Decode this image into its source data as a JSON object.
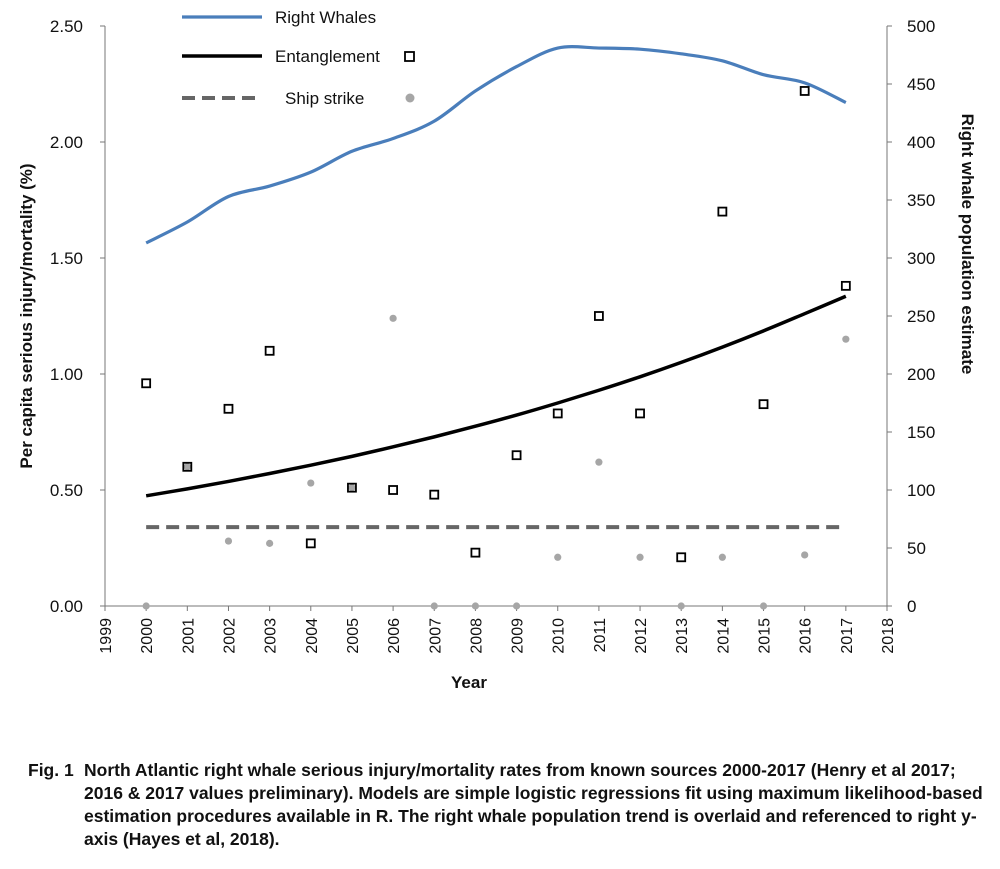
{
  "chart_data": {
    "type": "line",
    "xlabel": "Year",
    "ylabel_left": "Per capita serious injury/mortality (%)",
    "ylabel_right": "Right whale population estimate",
    "x_ticks": [
      "1999",
      "2000",
      "2001",
      "2002",
      "2003",
      "2004",
      "2005",
      "2006",
      "2007",
      "2008",
      "2009",
      "2010",
      "2011",
      "2012",
      "2013",
      "2014",
      "2015",
      "2016",
      "2017",
      "2018"
    ],
    "xlim": [
      1999,
      2018
    ],
    "ylim_left": [
      0,
      2.5
    ],
    "ylim_right": [
      0,
      500
    ],
    "y_ticks_left": [
      "0.00",
      "0.50",
      "1.00",
      "1.50",
      "2.00",
      "2.50"
    ],
    "y_ticks_right": [
      "0",
      "50",
      "100",
      "150",
      "200",
      "250",
      "300",
      "350",
      "400",
      "450",
      "500"
    ],
    "legend_placement": "top-left",
    "series": [
      {
        "name": "Right Whales",
        "style": "line",
        "axis": "right",
        "color": "#4a7ebb",
        "x": [
          2000,
          2001,
          2002,
          2003,
          2004,
          2005,
          2006,
          2007,
          2008,
          2009,
          2010,
          2011,
          2012,
          2013,
          2014,
          2015,
          2016,
          2017
        ],
        "values": [
          313,
          331,
          353,
          362,
          374,
          392,
          403,
          418,
          444,
          465,
          481,
          481,
          480,
          476,
          470,
          458,
          451,
          434
        ]
      },
      {
        "name": "Entanglement",
        "style": "open-square",
        "axis": "left",
        "color": "#000000",
        "x": [
          2000,
          2001,
          2002,
          2003,
          2004,
          2005,
          2006,
          2007,
          2008,
          2009,
          2010,
          2011,
          2012,
          2013,
          2014,
          2015,
          2016,
          2017
        ],
        "values": [
          0.96,
          0.6,
          0.85,
          1.1,
          0.27,
          0.51,
          0.5,
          0.48,
          0.23,
          0.65,
          0.83,
          1.25,
          0.83,
          0.21,
          1.7,
          0.87,
          2.22,
          1.38
        ]
      },
      {
        "name": "Entanglement model",
        "style": "solid-line",
        "axis": "left",
        "color": "#000000",
        "x": [
          2000,
          2001,
          2002,
          2003,
          2004,
          2005,
          2006,
          2007,
          2008,
          2009,
          2010,
          2011,
          2012,
          2013,
          2014,
          2015,
          2016,
          2017
        ],
        "values": [
          0.475,
          0.505,
          0.537,
          0.571,
          0.607,
          0.645,
          0.686,
          0.729,
          0.775,
          0.823,
          0.875,
          0.93,
          0.988,
          1.05,
          1.116,
          1.186,
          1.26,
          1.335
        ]
      },
      {
        "name": "Ship strike",
        "style": "filled-dot",
        "axis": "left",
        "color": "#a6a6a6",
        "x": [
          2000,
          2001,
          2002,
          2003,
          2004,
          2005,
          2006,
          2007,
          2008,
          2009,
          2010,
          2011,
          2012,
          2013,
          2014,
          2015,
          2016,
          2017
        ],
        "values": [
          0.0,
          0.6,
          0.28,
          0.27,
          0.53,
          0.51,
          1.24,
          0.0,
          0.0,
          0.0,
          0.21,
          0.62,
          0.21,
          0.0,
          0.21,
          0.0,
          0.22,
          1.15
        ]
      },
      {
        "name": "Ship strike model",
        "style": "dashed-line",
        "axis": "left",
        "color": "#666666",
        "x": [
          2000,
          2017
        ],
        "values": [
          0.34,
          0.34
        ]
      }
    ],
    "legend": [
      {
        "label": "Right Whales",
        "series": 0
      },
      {
        "label": "Entanglement",
        "series": 1
      },
      {
        "label": "Ship strike",
        "series": 3
      }
    ]
  },
  "caption": {
    "fig_label": "Fig. 1",
    "text": "North Atlantic right whale serious injury/mortality rates from known sources 2000-2017 (Henry et al 2017; 2016 & 2017 values preliminary). Models are simple logistic regressions fit using maximum likelihood-based estimation procedures available in R. The right whale population trend is overlaid and referenced to right y-axis (Hayes et al, 2018)."
  }
}
